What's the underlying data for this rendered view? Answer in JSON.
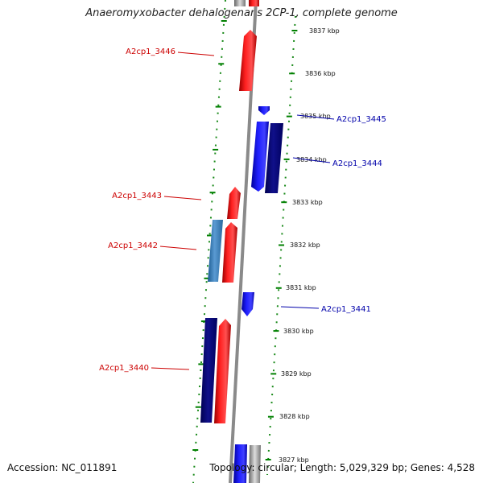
{
  "title": "Anaeromyxobacter dehalogenans 2CP-1, complete genome",
  "footer": {
    "accession": "Accession: NC_011891",
    "topology": "Topology: circular; Length: 5,029,329 bp; Genes: 4,528"
  },
  "colors": {
    "forward_gene": "#ff0000",
    "reverse_gene": "#0000ff",
    "reverse_gene_dark": "#000080",
    "forward_gene_light": "#4a8cc6",
    "tick": "#008000",
    "backbone": "#888888",
    "label_forward": "#cc0000",
    "label_reverse": "#0000aa"
  },
  "scale_labels": [
    "3837 kbp",
    "3836 kbp",
    "3835 kbp",
    "3834 kbp",
    "3833 kbp",
    "3832 kbp",
    "3831 kbp",
    "3830 kbp",
    "3829 kbp",
    "3828 kbp",
    "3827 kbp"
  ],
  "gene_labels": [
    {
      "id": "A2cp1_3446",
      "strand": "forward"
    },
    {
      "id": "A2cp1_3445",
      "strand": "reverse"
    },
    {
      "id": "A2cp1_3444",
      "strand": "reverse"
    },
    {
      "id": "A2cp1_3443",
      "strand": "forward"
    },
    {
      "id": "A2cp1_3442",
      "strand": "forward"
    },
    {
      "id": "A2cp1_3441",
      "strand": "reverse"
    },
    {
      "id": "A2cp1_3440",
      "strand": "forward"
    }
  ]
}
